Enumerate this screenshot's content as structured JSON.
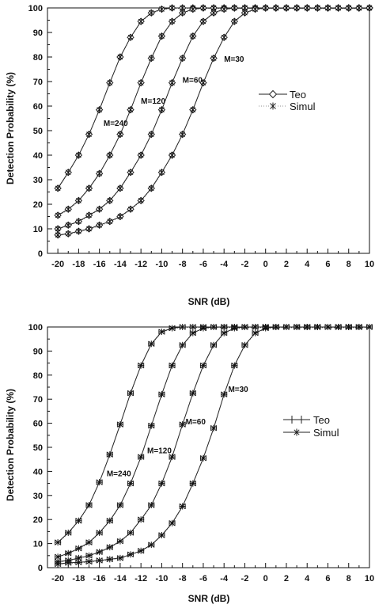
{
  "chart_data": [
    {
      "type": "line",
      "xlabel": "SNR (dB)",
      "ylabel": "Detection Probability (%)",
      "xlim": [
        -21,
        10
      ],
      "ylim": [
        0,
        100
      ],
      "xticks": [
        -20,
        -18,
        -16,
        -14,
        -12,
        -10,
        -8,
        -6,
        -4,
        -2,
        0,
        2,
        4,
        6,
        8,
        10
      ],
      "yticks": [
        0,
        10,
        20,
        30,
        40,
        50,
        60,
        70,
        80,
        90,
        100
      ],
      "grid": false,
      "legend_position": "right, middle",
      "legend": [
        "Teo",
        "Simul"
      ],
      "marker_teo": "diamond",
      "marker_simul": "star",
      "x": [
        -20,
        -19,
        -18,
        -17,
        -16,
        -15,
        -14,
        -13,
        -12,
        -11,
        -10,
        -9,
        -8,
        -7,
        -6,
        -5,
        -4,
        -3,
        -2,
        -1,
        0,
        1,
        2,
        3,
        4,
        5,
        6,
        7,
        8,
        9,
        10
      ],
      "curves": [
        {
          "label": "M=240",
          "values": [
            26.5,
            33,
            40,
            48.5,
            58.5,
            69.5,
            80,
            88,
            94.5,
            98,
            99.5,
            100,
            100,
            100,
            100,
            100,
            100,
            100,
            100,
            100,
            100,
            100,
            100,
            100,
            100,
            100,
            100,
            100,
            100,
            100,
            100
          ]
        },
        {
          "label": "M=120",
          "values": [
            15.5,
            18,
            21.5,
            26.5,
            32.5,
            40,
            48.5,
            58.5,
            69.5,
            79.5,
            88.5,
            94.5,
            98,
            99.5,
            100,
            100,
            100,
            100,
            100,
            100,
            100,
            100,
            100,
            100,
            100,
            100,
            100,
            100,
            100,
            100,
            100
          ]
        },
        {
          "label": "M=60",
          "values": [
            10,
            11.5,
            13,
            15.5,
            18,
            21.5,
            26.5,
            33,
            40,
            48.5,
            58.5,
            69.5,
            79.5,
            88.5,
            94.5,
            98,
            99.5,
            100,
            100,
            100,
            100,
            100,
            100,
            100,
            100,
            100,
            100,
            100,
            100,
            100,
            100
          ]
        },
        {
          "label": "M=30",
          "values": [
            7.5,
            8,
            9,
            10,
            11.5,
            13,
            15,
            18,
            21.5,
            26.5,
            33,
            40,
            48.5,
            58.5,
            69.5,
            79.5,
            88,
            94.5,
            98,
            99.5,
            100,
            100,
            100,
            100,
            100,
            100,
            100,
            100,
            100,
            100,
            100
          ]
        }
      ]
    },
    {
      "type": "line",
      "xlabel": "SNR (dB)",
      "ylabel": "Detection Probability (%)",
      "xlim": [
        -21,
        10
      ],
      "ylim": [
        0,
        100
      ],
      "xticks": [
        -20,
        -18,
        -16,
        -14,
        -12,
        -10,
        -8,
        -6,
        -4,
        -2,
        0,
        2,
        4,
        6,
        8,
        10
      ],
      "yticks": [
        0,
        10,
        20,
        30,
        40,
        50,
        60,
        70,
        80,
        90,
        100
      ],
      "grid": false,
      "legend_position": "right, middle",
      "legend": [
        "Teo",
        "Simul"
      ],
      "marker_teo": "bar",
      "marker_simul": "star",
      "x": [
        -20,
        -19,
        -18,
        -17,
        -16,
        -15,
        -14,
        -13,
        -12,
        -11,
        -10,
        -9,
        -8,
        -7,
        -6,
        -5,
        -4,
        -3,
        -2,
        -1,
        0,
        1,
        2,
        3,
        4,
        5,
        6,
        7,
        8,
        9,
        10
      ],
      "curves": [
        {
          "label": "M=240",
          "values": [
            10.5,
            14.5,
            19.5,
            26,
            35.5,
            47,
            59.5,
            72.5,
            84,
            93,
            98,
            99.5,
            100,
            100,
            100,
            100,
            100,
            100,
            100,
            100,
            100,
            100,
            100,
            100,
            100,
            100,
            100,
            100,
            100,
            100,
            100
          ]
        },
        {
          "label": "M=120",
          "values": [
            4.5,
            6,
            8,
            10.5,
            14.5,
            19.5,
            26,
            35,
            46,
            59,
            72,
            84,
            92.5,
            97.5,
            99.5,
            100,
            100,
            100,
            100,
            100,
            100,
            100,
            100,
            100,
            100,
            100,
            100,
            100,
            100,
            100,
            100
          ]
        },
        {
          "label": "M=60",
          "values": [
            2.5,
            3,
            4,
            5,
            6.5,
            8.5,
            11,
            14.5,
            20,
            26,
            35,
            46,
            59.5,
            72.5,
            84,
            92.5,
            97.5,
            99.5,
            100,
            100,
            100,
            100,
            100,
            100,
            100,
            100,
            100,
            100,
            100,
            100,
            100
          ]
        },
        {
          "label": "M=30",
          "values": [
            1.5,
            2,
            2.2,
            2.5,
            3,
            3.5,
            4,
            5.5,
            7,
            9.5,
            13.5,
            18.5,
            25.5,
            35,
            45.5,
            58,
            72,
            84,
            92.5,
            97.5,
            99.5,
            100,
            100,
            100,
            100,
            100,
            100,
            100,
            100,
            100,
            100
          ]
        }
      ]
    }
  ]
}
